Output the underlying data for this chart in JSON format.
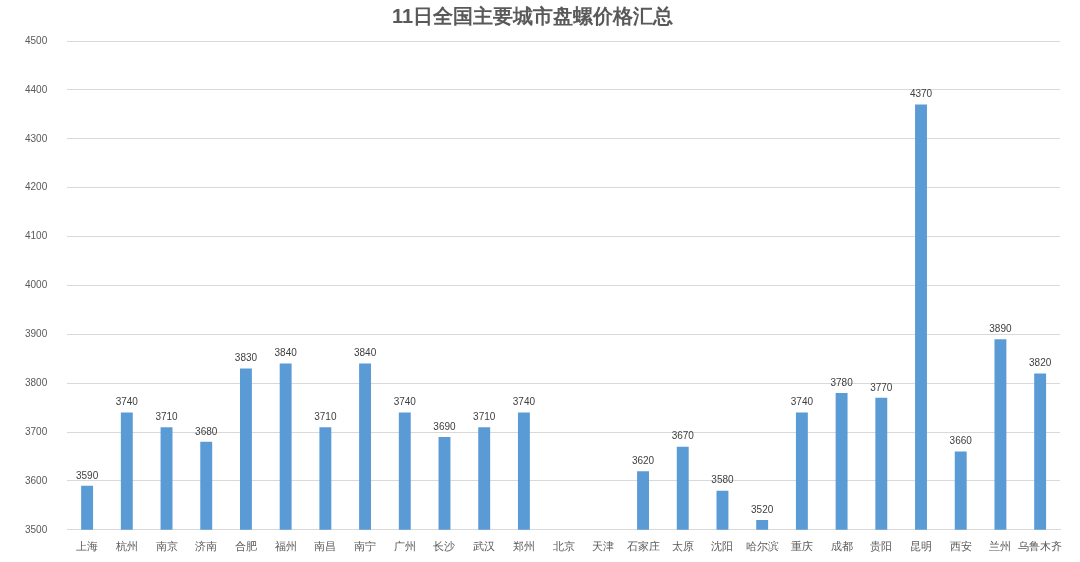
{
  "chart_data": {
    "type": "bar",
    "title": "11日全国主要城市盘螺价格汇总",
    "categories": [
      "上海",
      "杭州",
      "南京",
      "济南",
      "合肥",
      "福州",
      "南昌",
      "南宁",
      "广州",
      "长沙",
      "武汉",
      "郑州",
      "北京",
      "天津",
      "石家庄",
      "太原",
      "沈阳",
      "哈尔滨",
      "重庆",
      "成都",
      "贵阳",
      "昆明",
      "西安",
      "兰州",
      "乌鲁木齐"
    ],
    "values": [
      3590,
      3740,
      3710,
      3680,
      3830,
      3840,
      3710,
      3840,
      3740,
      3690,
      3710,
      3740,
      null,
      null,
      3620,
      3670,
      3580,
      3520,
      3740,
      3780,
      3770,
      4370,
      3660,
      3890,
      3820
    ],
    "color": "#5b9bd5",
    "ylim": [
      3500,
      4500
    ],
    "yticks": [
      3500,
      3600,
      3700,
      3800,
      3900,
      4000,
      4100,
      4200,
      4300,
      4400,
      4500
    ],
    "grid": "y",
    "data_labels": true
  }
}
